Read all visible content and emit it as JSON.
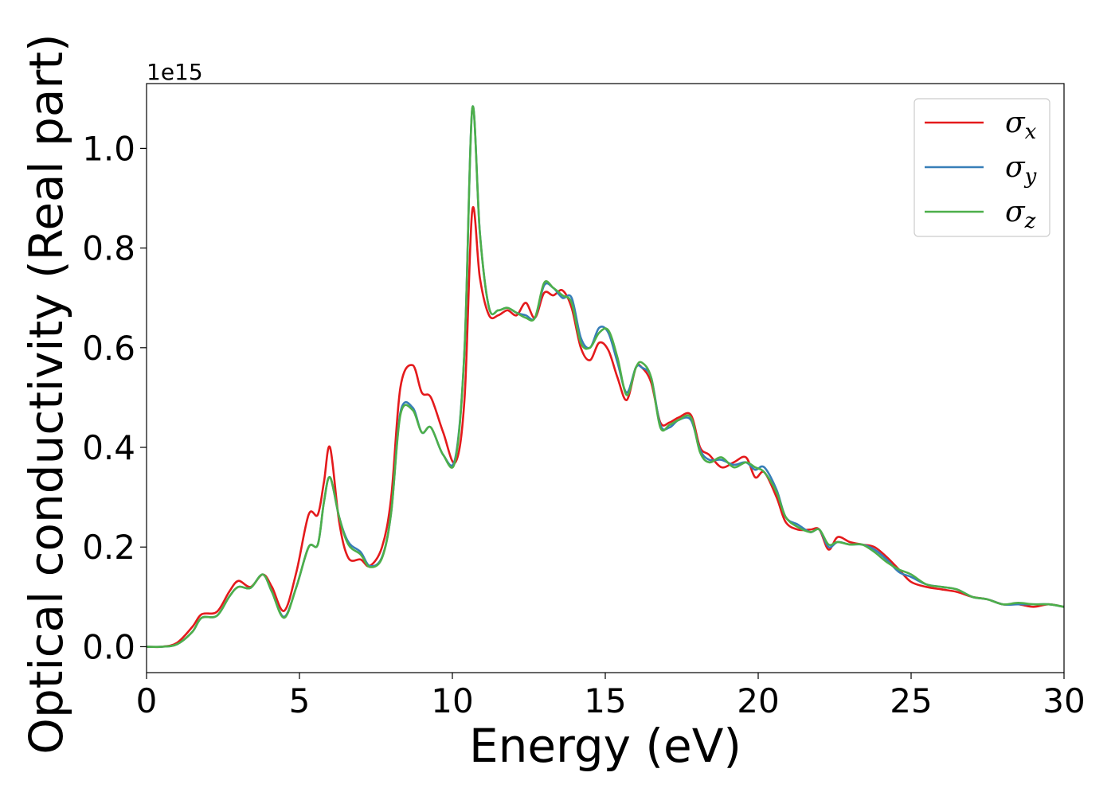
{
  "chart_data": {
    "type": "line",
    "title": "",
    "xlabel": "Energy (eV)",
    "ylabel": "Optical conductivity (Real part)",
    "offset_label": "1e15",
    "xlim": [
      0,
      30
    ],
    "ylim": [
      -0.052,
      1.13
    ],
    "xticks": [
      0,
      5,
      10,
      15,
      20,
      25,
      30
    ],
    "xtick_labels": [
      "0",
      "5",
      "10",
      "15",
      "20",
      "25",
      "30"
    ],
    "yticks": [
      0.0,
      0.2,
      0.4,
      0.6,
      0.8,
      1.0
    ],
    "ytick_labels": [
      "0.0",
      "0.2",
      "0.4",
      "0.6",
      "0.8",
      "1.0"
    ],
    "grid": false,
    "legend_position": "top-right",
    "legend": [
      {
        "symbol": "σ",
        "sub": "x",
        "color": "#e41a1c"
      },
      {
        "symbol": "σ",
        "sub": "y",
        "color": "#377eb8"
      },
      {
        "symbol": "σ",
        "sub": "z",
        "color": "#4daf4a"
      }
    ],
    "series": [
      {
        "name": "σx",
        "color": "#e41a1c",
        "x": [
          0,
          0.5,
          1.0,
          1.5,
          1.8,
          2.3,
          2.7,
          3.0,
          3.4,
          3.8,
          4.1,
          4.5,
          4.9,
          5.3,
          5.6,
          5.8,
          6.0,
          6.3,
          6.6,
          7.0,
          7.3,
          7.7,
          8.0,
          8.3,
          8.7,
          9.0,
          9.3,
          9.7,
          10.1,
          10.4,
          10.65,
          10.9,
          11.2,
          11.5,
          11.8,
          12.1,
          12.4,
          12.7,
          13.0,
          13.3,
          13.6,
          13.9,
          14.2,
          14.5,
          14.8,
          15.1,
          15.4,
          15.7,
          16.0,
          16.2,
          16.5,
          16.8,
          17.1,
          17.4,
          17.8,
          18.1,
          18.4,
          18.8,
          19.2,
          19.6,
          19.9,
          20.2,
          20.6,
          20.9,
          21.3,
          21.7,
          22.0,
          22.3,
          22.6,
          23.0,
          23.4,
          23.8,
          24.2,
          24.6,
          25.0,
          25.5,
          26.0,
          26.5,
          27.0,
          27.5,
          28.0,
          28.5,
          29.0,
          29.5,
          30.0
        ],
        "values": [
          0.0,
          0.0,
          0.008,
          0.04,
          0.065,
          0.07,
          0.11,
          0.132,
          0.12,
          0.145,
          0.12,
          0.072,
          0.15,
          0.265,
          0.265,
          0.33,
          0.4,
          0.25,
          0.178,
          0.175,
          0.162,
          0.2,
          0.3,
          0.52,
          0.565,
          0.51,
          0.5,
          0.43,
          0.37,
          0.5,
          0.875,
          0.74,
          0.665,
          0.665,
          0.675,
          0.665,
          0.69,
          0.66,
          0.71,
          0.705,
          0.715,
          0.68,
          0.6,
          0.575,
          0.61,
          0.595,
          0.54,
          0.495,
          0.56,
          0.56,
          0.53,
          0.45,
          0.45,
          0.46,
          0.465,
          0.4,
          0.385,
          0.36,
          0.37,
          0.38,
          0.34,
          0.35,
          0.3,
          0.25,
          0.235,
          0.235,
          0.235,
          0.195,
          0.22,
          0.21,
          0.205,
          0.2,
          0.18,
          0.155,
          0.13,
          0.12,
          0.115,
          0.11,
          0.1,
          0.095,
          0.085,
          0.085,
          0.08,
          0.085,
          0.08
        ]
      },
      {
        "name": "σy",
        "color": "#377eb8",
        "x": [
          0,
          0.5,
          1.0,
          1.5,
          1.8,
          2.3,
          2.7,
          3.0,
          3.4,
          3.8,
          4.1,
          4.5,
          4.9,
          5.3,
          5.6,
          5.8,
          6.0,
          6.3,
          6.6,
          7.0,
          7.3,
          7.7,
          8.0,
          8.3,
          8.7,
          9.0,
          9.3,
          9.7,
          10.1,
          10.4,
          10.65,
          10.9,
          11.2,
          11.5,
          11.8,
          12.1,
          12.4,
          12.7,
          13.0,
          13.3,
          13.6,
          13.9,
          14.2,
          14.5,
          14.8,
          15.1,
          15.4,
          15.7,
          16.0,
          16.2,
          16.5,
          16.8,
          17.1,
          17.4,
          17.8,
          18.1,
          18.4,
          18.8,
          19.2,
          19.6,
          19.9,
          20.2,
          20.6,
          20.9,
          21.3,
          21.7,
          22.0,
          22.3,
          22.6,
          23.0,
          23.4,
          23.8,
          24.2,
          24.6,
          25.0,
          25.5,
          26.0,
          26.5,
          27.0,
          27.5,
          28.0,
          28.5,
          29.0,
          29.5,
          30.0
        ],
        "values": [
          0.0,
          0.0,
          0.005,
          0.03,
          0.058,
          0.062,
          0.1,
          0.12,
          0.118,
          0.145,
          0.11,
          0.06,
          0.12,
          0.2,
          0.205,
          0.29,
          0.34,
          0.26,
          0.21,
          0.19,
          0.162,
          0.18,
          0.27,
          0.47,
          0.48,
          0.43,
          0.44,
          0.385,
          0.38,
          0.6,
          1.08,
          0.83,
          0.68,
          0.675,
          0.68,
          0.67,
          0.665,
          0.66,
          0.725,
          0.72,
          0.7,
          0.7,
          0.62,
          0.6,
          0.64,
          0.63,
          0.57,
          0.51,
          0.56,
          0.56,
          0.54,
          0.445,
          0.44,
          0.455,
          0.455,
          0.395,
          0.375,
          0.375,
          0.365,
          0.37,
          0.355,
          0.36,
          0.315,
          0.26,
          0.245,
          0.23,
          0.235,
          0.2,
          0.21,
          0.205,
          0.205,
          0.195,
          0.175,
          0.15,
          0.14,
          0.125,
          0.12,
          0.115,
          0.1,
          0.095,
          0.085,
          0.085,
          0.085,
          0.085,
          0.08
        ]
      },
      {
        "name": "σz",
        "color": "#4daf4a",
        "x": [
          0,
          0.5,
          1.0,
          1.5,
          1.8,
          2.3,
          2.7,
          3.0,
          3.4,
          3.8,
          4.1,
          4.5,
          4.9,
          5.3,
          5.6,
          5.8,
          6.0,
          6.3,
          6.6,
          7.0,
          7.3,
          7.7,
          8.0,
          8.3,
          8.7,
          9.0,
          9.3,
          9.7,
          10.1,
          10.4,
          10.65,
          10.9,
          11.2,
          11.5,
          11.8,
          12.1,
          12.4,
          12.7,
          13.0,
          13.3,
          13.6,
          13.9,
          14.2,
          14.5,
          14.8,
          15.1,
          15.4,
          15.7,
          16.0,
          16.2,
          16.5,
          16.8,
          17.1,
          17.4,
          17.8,
          18.1,
          18.4,
          18.8,
          19.2,
          19.6,
          19.9,
          20.2,
          20.6,
          20.9,
          21.3,
          21.7,
          22.0,
          22.3,
          22.6,
          23.0,
          23.4,
          23.8,
          24.2,
          24.6,
          25.0,
          25.5,
          26.0,
          26.5,
          27.0,
          27.5,
          28.0,
          28.5,
          29.0,
          29.5,
          30.0
        ],
        "values": [
          0.0,
          0.0,
          0.005,
          0.03,
          0.058,
          0.062,
          0.1,
          0.12,
          0.118,
          0.145,
          0.11,
          0.058,
          0.12,
          0.2,
          0.205,
          0.29,
          0.34,
          0.26,
          0.205,
          0.185,
          0.16,
          0.178,
          0.27,
          0.465,
          0.475,
          0.43,
          0.44,
          0.385,
          0.375,
          0.6,
          1.08,
          0.83,
          0.68,
          0.675,
          0.68,
          0.67,
          0.66,
          0.66,
          0.73,
          0.72,
          0.705,
          0.69,
          0.61,
          0.6,
          0.63,
          0.635,
          0.58,
          0.505,
          0.56,
          0.57,
          0.54,
          0.44,
          0.445,
          0.455,
          0.46,
          0.39,
          0.37,
          0.38,
          0.36,
          0.37,
          0.36,
          0.35,
          0.31,
          0.26,
          0.24,
          0.23,
          0.235,
          0.205,
          0.21,
          0.205,
          0.205,
          0.19,
          0.17,
          0.155,
          0.145,
          0.125,
          0.12,
          0.115,
          0.1,
          0.095,
          0.085,
          0.088,
          0.085,
          0.085,
          0.08
        ]
      }
    ]
  }
}
